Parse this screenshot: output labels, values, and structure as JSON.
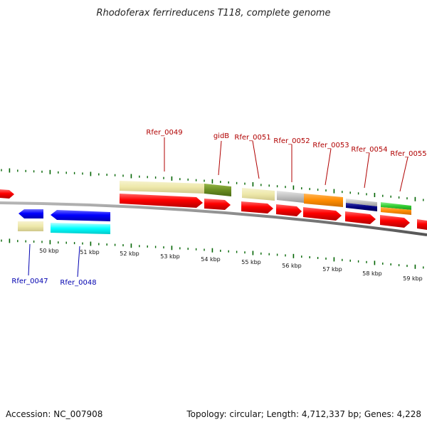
{
  "title": "Rhodoferax ferrireducens T118, complete genome",
  "footer": {
    "accession": "Accession: NC_007908",
    "summary": "Topology: circular; Length: 4,712,337 bp; Genes: 4,228"
  },
  "axis_labels": [
    "50 kbp",
    "51 kbp",
    "52 kbp",
    "53 kbp",
    "54 kbp",
    "55 kbp",
    "56 kbp",
    "57 kbp",
    "58 kbp",
    "59 kbp"
  ],
  "top_gene_labels": [
    "Rfer_0049",
    "gidB",
    "Rfer_0051",
    "Rfer_0052",
    "Rfer_0053",
    "Rfer_0054",
    "Rfer_0055"
  ],
  "bottom_gene_labels": [
    "Rfer_0047",
    "Rfer_0048"
  ],
  "colors": {
    "gene_red": "#ff0000",
    "gene_blue": "#0000ff",
    "cyan": "#00ffff",
    "khaki": "#eee8aa",
    "olive": "#6b8e23",
    "silver": "#c0c0c0",
    "orange": "#ff8c00",
    "navy": "#000080",
    "green": "#32cd32",
    "tick_green": "#006400",
    "backbone": "#808080"
  }
}
